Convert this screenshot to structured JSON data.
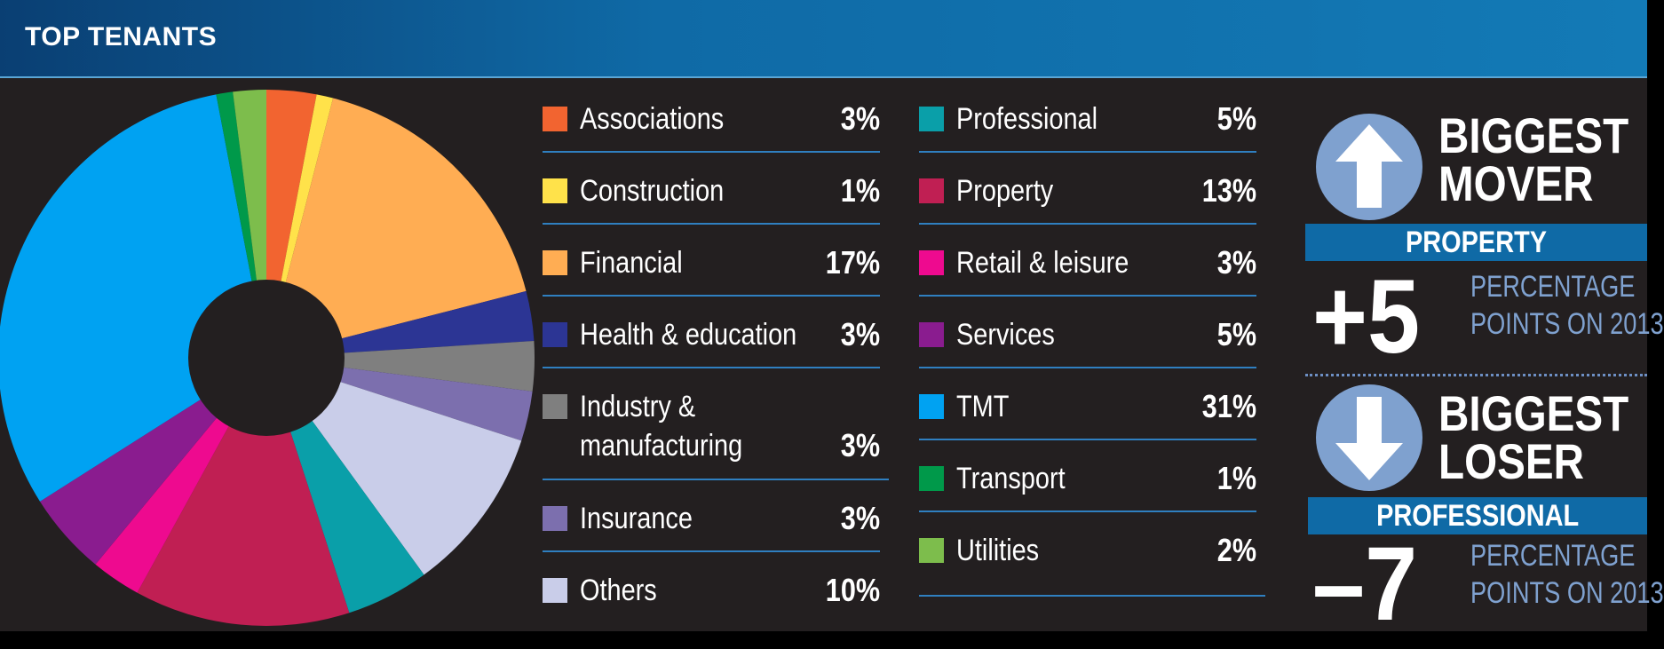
{
  "header": {
    "title": "TOP TENANTS"
  },
  "chart_data": {
    "type": "pie",
    "series": [
      {
        "name": "Associations",
        "value": 3,
        "color": "#f26430"
      },
      {
        "name": "Construction",
        "value": 1,
        "color": "#ffe24a"
      },
      {
        "name": "Financial",
        "value": 17,
        "color": "#ffad53"
      },
      {
        "name": "Health & education",
        "value": 3,
        "color": "#2c3594"
      },
      {
        "name": "Industry & manufacturing",
        "value": 3,
        "color": "#7f7f7f"
      },
      {
        "name": "Insurance",
        "value": 3,
        "color": "#7c6fae"
      },
      {
        "name": "Others",
        "value": 10,
        "color": "#c9cde9"
      },
      {
        "name": "Professional",
        "value": 5,
        "color": "#0a9fa9"
      },
      {
        "name": "Property",
        "value": 13,
        "color": "#c01f53"
      },
      {
        "name": "Retail & leisure",
        "value": 3,
        "color": "#ee0a8f"
      },
      {
        "name": "Services",
        "value": 5,
        "color": "#8a1c8f"
      },
      {
        "name": "TMT",
        "value": 31,
        "color": "#00a2f2"
      },
      {
        "name": "Transport",
        "value": 1,
        "color": "#00994a"
      },
      {
        "name": "Utilities",
        "value": 2,
        "color": "#7dbd4c"
      }
    ]
  },
  "legend": {
    "left": [
      {
        "label": "Associations",
        "value": "3%",
        "color": "#f26430"
      },
      {
        "label": "Construction",
        "value": "1%",
        "color": "#ffe24a"
      },
      {
        "label": "Financial",
        "value": "17%",
        "color": "#ffad53"
      },
      {
        "label": "Health & education",
        "value": "3%",
        "color": "#2c3594"
      },
      {
        "label": "Industry &",
        "label2": "manufacturing",
        "value": "3%",
        "color": "#7f7f7f"
      },
      {
        "label": "Insurance",
        "value": "3%",
        "color": "#7c6fae"
      },
      {
        "label": "Others",
        "value": "10%",
        "color": "#c9cde9"
      }
    ],
    "right": [
      {
        "label": "Professional",
        "value": "5%",
        "color": "#0a9fa9"
      },
      {
        "label": "Property",
        "value": "13%",
        "color": "#c01f53"
      },
      {
        "label": "Retail & leisure",
        "value": "3%",
        "color": "#ee0a8f"
      },
      {
        "label": "Services",
        "value": "5%",
        "color": "#8a1c8f"
      },
      {
        "label": "TMT",
        "value": "31%",
        "color": "#00a2f2"
      },
      {
        "label": "Transport",
        "value": "1%",
        "color": "#00994a"
      },
      {
        "label": "Utilities",
        "value": "2%",
        "color": "#7dbd4c"
      }
    ]
  },
  "mover": {
    "title_line1": "BIGGEST",
    "title_line2": "MOVER",
    "category": "PROPERTY",
    "change": "+5",
    "sub_line1": "PERCENTAGE",
    "sub_line2": "POINTS ON 2013",
    "icon": "arrow-up-icon"
  },
  "loser": {
    "title_line1": "BIGGEST",
    "title_line2": "LOSER",
    "category": "PROFESSIONAL",
    "change": "–7",
    "sub_line1": "PERCENTAGE",
    "sub_line2": "POINTS ON 2013",
    "icon": "arrow-down-icon"
  }
}
